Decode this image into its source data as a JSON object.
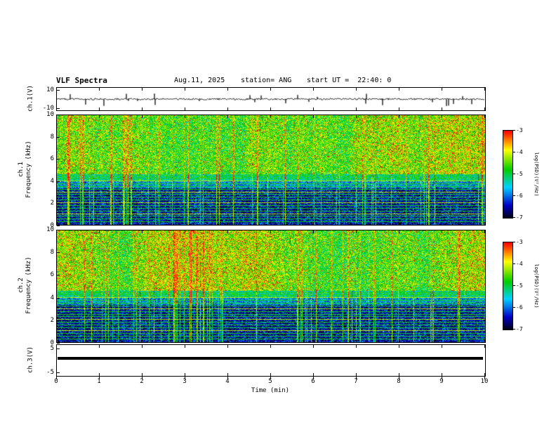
{
  "header": {
    "title": "VLF Spectra",
    "date": "Aug.11, 2025",
    "station": "station= ANG",
    "start_ut": "start UT =  22:40: 0"
  },
  "x_axis": {
    "label": "Time (min)",
    "min": 0,
    "max": 10,
    "ticks": [
      "0",
      "1",
      "2",
      "3",
      "4",
      "5",
      "6",
      "7",
      "8",
      "9",
      "10"
    ]
  },
  "panels": {
    "ch1": {
      "ylabel": "ch.1(V)",
      "ylim": [
        -13,
        13
      ],
      "yticks": [
        10,
        -10
      ]
    },
    "spec1": {
      "ylabel_channel": "ch.1",
      "ylabel_axis": "Frequency (kHz)",
      "ylim": [
        0,
        10
      ],
      "yticks": [
        0,
        2,
        4,
        6,
        8,
        10
      ]
    },
    "spec2": {
      "ylabel_channel": "ch.2",
      "ylabel_axis": "Frequency (kHz)",
      "ylim": [
        0,
        10
      ],
      "yticks": [
        0,
        2,
        4,
        6,
        8,
        10
      ]
    },
    "ch3": {
      "ylabel": "ch.3(V)",
      "ylim": [
        -6.6,
        6.6
      ],
      "yticks": [
        5,
        -5
      ],
      "value": 1.0
    }
  },
  "colorbar": {
    "label": "log(PSD)(V²/Hz)",
    "ticks": [
      -3,
      -4,
      -5,
      -6,
      -7
    ],
    "scale_top": "red = -3",
    "scale_bottom": "black = -7"
  },
  "chart_data": [
    {
      "type": "line",
      "name": "ch1-waveform",
      "title": "ch.1(V) time series",
      "xlabel": "Time (min)",
      "xlim": [
        0,
        10
      ],
      "ylabel": "ch.1(V)",
      "ylim": [
        -13,
        13
      ],
      "yticks": [
        10,
        -10
      ],
      "description": "Broadband noise centred on 0 V (about ±1 V) with frequent impulsive sferic spikes reaching roughly ±8 V throughout the 10-minute record",
      "render": {
        "seed": 20250811,
        "noise_v": 1.0,
        "spike_prob": 0.04,
        "spike_v": 8
      }
    },
    {
      "type": "heatmap",
      "name": "ch1-spectrogram",
      "x": {
        "label": "Time (min)",
        "range": [
          0,
          10
        ]
      },
      "y": {
        "label": "ch.1 Frequency (kHz)",
        "range": [
          0,
          10
        ]
      },
      "z": {
        "label": "log(PSD)(V²/Hz)",
        "range": [
          -7,
          -3
        ],
        "colormap": "rainbow: red -3, yellow -4, green -5, blue -6, black -7"
      },
      "structure": {
        "bands": [
          {
            "freq_khz": [
              4.6,
              10
            ],
            "psd_approx": -4.8,
            "description": "turbulent green/yellow band with red speckle clusters (lightning activity)"
          },
          {
            "freq_khz": [
              3.3,
              4.6
            ],
            "psd_approx": -5.6,
            "description": "cyan/blue transition band with horizontal striping"
          },
          {
            "freq_khz": [
              0,
              3.3
            ],
            "psd_approx": -6.6,
            "description": "dark blue/black band crossed by bright horizontal harmonic lines and vertical sferic streaks"
          }
        ],
        "harmonic_lines_khz": [
          0.25,
          0.5,
          0.75,
          1.0,
          1.25,
          1.5,
          1.75,
          2.0,
          2.25,
          2.5,
          2.75,
          3.0,
          3.25,
          3.5,
          3.75,
          4.0,
          4.25,
          4.45
        ],
        "vertical_streaks": "impulsive columns spanning all frequencies at irregular times"
      },
      "render": {
        "seed": 123457,
        "speckle_prob": 0.08,
        "streak_prob": 0.09
      }
    },
    {
      "type": "heatmap",
      "name": "ch2-spectrogram",
      "x": {
        "label": "Time (min)",
        "range": [
          0,
          10
        ]
      },
      "y": {
        "label": "ch.2 Frequency (kHz)",
        "range": [
          0,
          10
        ]
      },
      "z": {
        "label": "log(PSD)(V²/Hz)",
        "range": [
          -7,
          -3
        ],
        "colormap": "rainbow: red -3, yellow -4, green -5, blue -6, black -7"
      },
      "structure": {
        "bands": [
          {
            "freq_khz": [
              4.6,
              10
            ],
            "psd_approx": -4.8,
            "description": "turbulent green/yellow band with red speckle clusters"
          },
          {
            "freq_khz": [
              3.3,
              4.6
            ],
            "psd_approx": -5.6,
            "description": "cyan/blue transition band with horizontal striping"
          },
          {
            "freq_khz": [
              0,
              3.3
            ],
            "psd_approx": -6.6,
            "description": "dark blue/black band crossed by bright horizontal harmonic lines and vertical sferic streaks"
          }
        ],
        "harmonic_lines_khz": [
          0.25,
          0.5,
          0.75,
          1.0,
          1.25,
          1.5,
          1.75,
          2.0,
          2.25,
          2.5,
          2.75,
          3.0,
          3.25,
          3.5,
          3.75,
          4.0,
          4.25,
          4.45
        ],
        "vertical_streaks": "impulsive columns spanning all frequencies at irregular times"
      },
      "render": {
        "seed": 987431,
        "speckle_prob": 0.09,
        "streak_prob": 0.09
      }
    },
    {
      "type": "line",
      "name": "ch3-waveform",
      "title": "ch.3(V) time series",
      "xlabel": "Time (min)",
      "xlim": [
        0,
        10
      ],
      "ylabel": "ch.3(V)",
      "ylim": [
        -6.6,
        6.6
      ],
      "yticks": [
        5,
        -5
      ],
      "description": "Constant flat level of about +1 V for the entire record (thick solid black line)",
      "values_v": 1.0
    }
  ]
}
